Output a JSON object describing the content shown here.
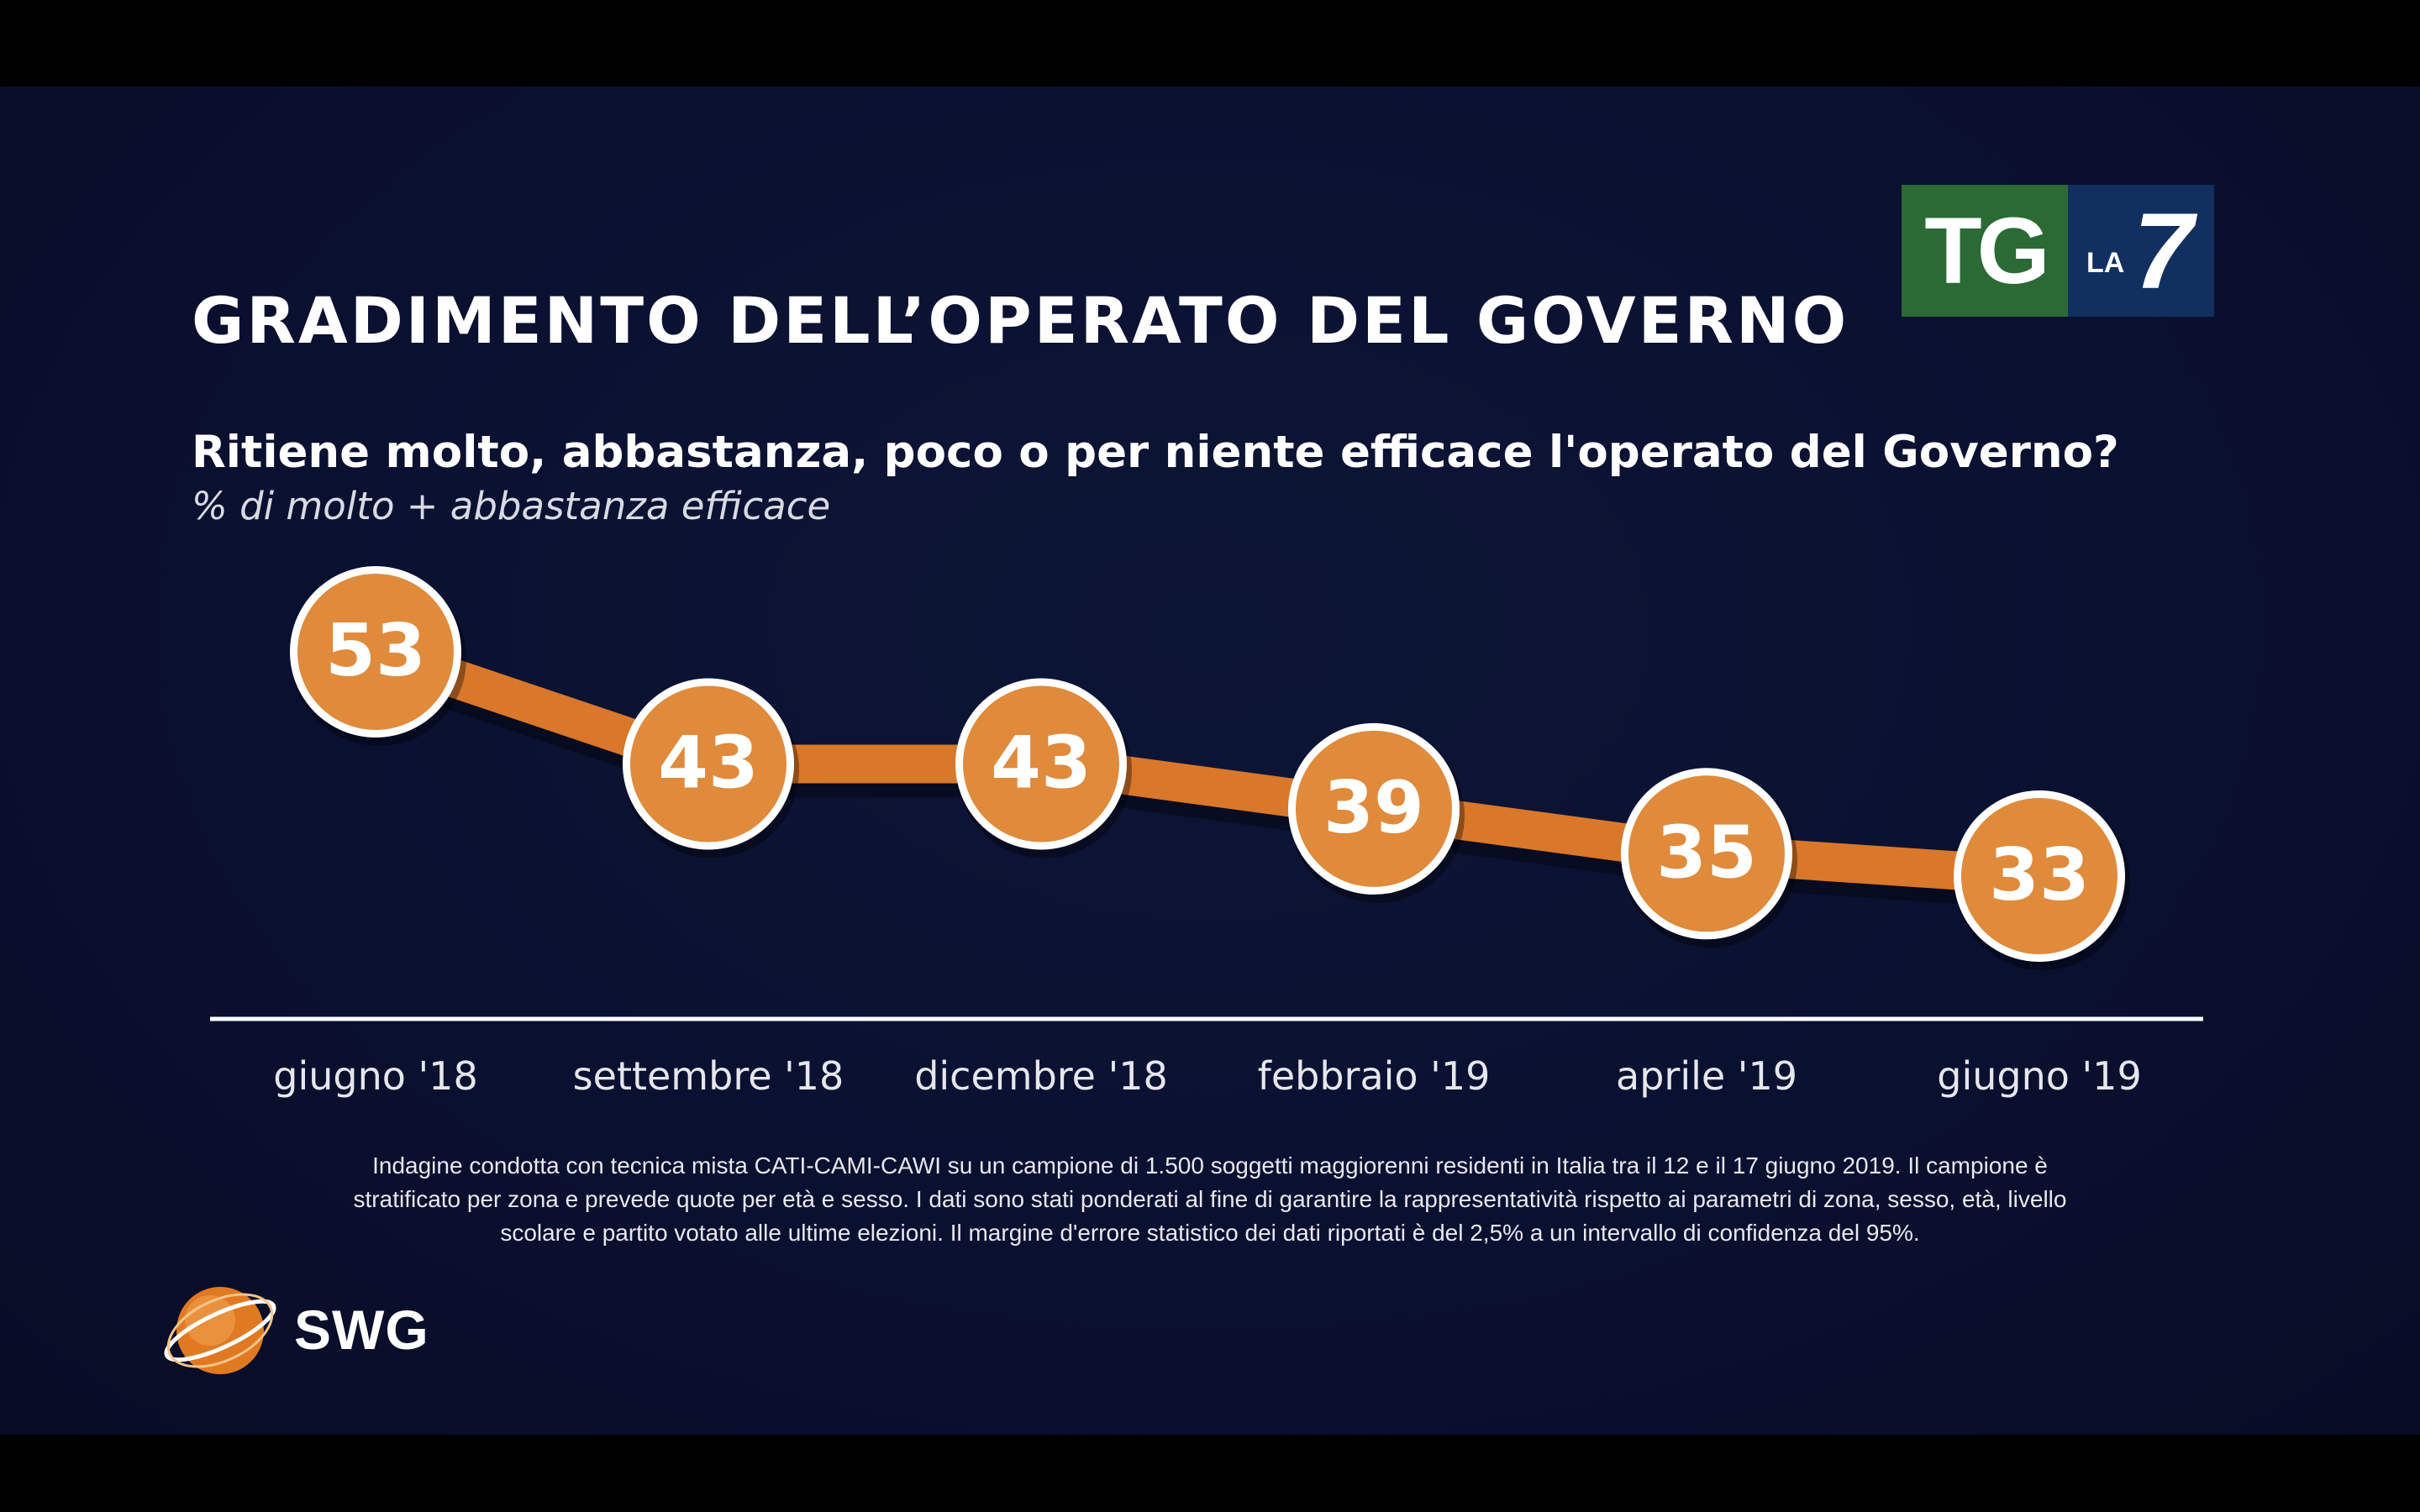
{
  "title": "GRADIMENTO DELL’OPERATO DEL GOVERNO",
  "question": "Ritiene molto, abbastanza, poco o per niente efficace l'operato del Governo?",
  "subtitle": "% di molto + abbastanza efficace",
  "logo": {
    "tg": "TG",
    "la": "LA",
    "seven": "7"
  },
  "chart_data": {
    "type": "line",
    "categories": [
      "giugno '18",
      "settembre '18",
      "dicembre '18",
      "febbraio '19",
      "aprile '19",
      "giugno '19"
    ],
    "values": [
      53,
      43,
      43,
      39,
      35,
      33
    ],
    "title": "GRADIMENTO DELL’OPERATO DEL GOVERNO",
    "xlabel": "",
    "ylabel": "",
    "grid": false,
    "colors": {
      "line": "#d9772a",
      "marker": "#e08a3c",
      "marker_border": "#ffffff",
      "axis": "#ffffff"
    }
  },
  "footnote": [
    "Indagine condotta con tecnica mista CATI-CAMI-CAWI su un campione di 1.500 soggetti maggiorenni residenti in Italia tra il 12 e il 17 giugno 2019. Il campione è",
    "stratificato per zona e prevede quote per età e sesso. I dati sono stati ponderati al fine di garantire la rappresentatività rispetto ai parametri di zona, sesso, età, livello",
    "scolare e partito votato alle ultime elezioni. Il margine d'errore statistico dei dati riportati è del 2,5% a un intervallo di confidenza del 95%."
  ],
  "brand": {
    "name": "SWG",
    "icon": "globe-icon"
  }
}
